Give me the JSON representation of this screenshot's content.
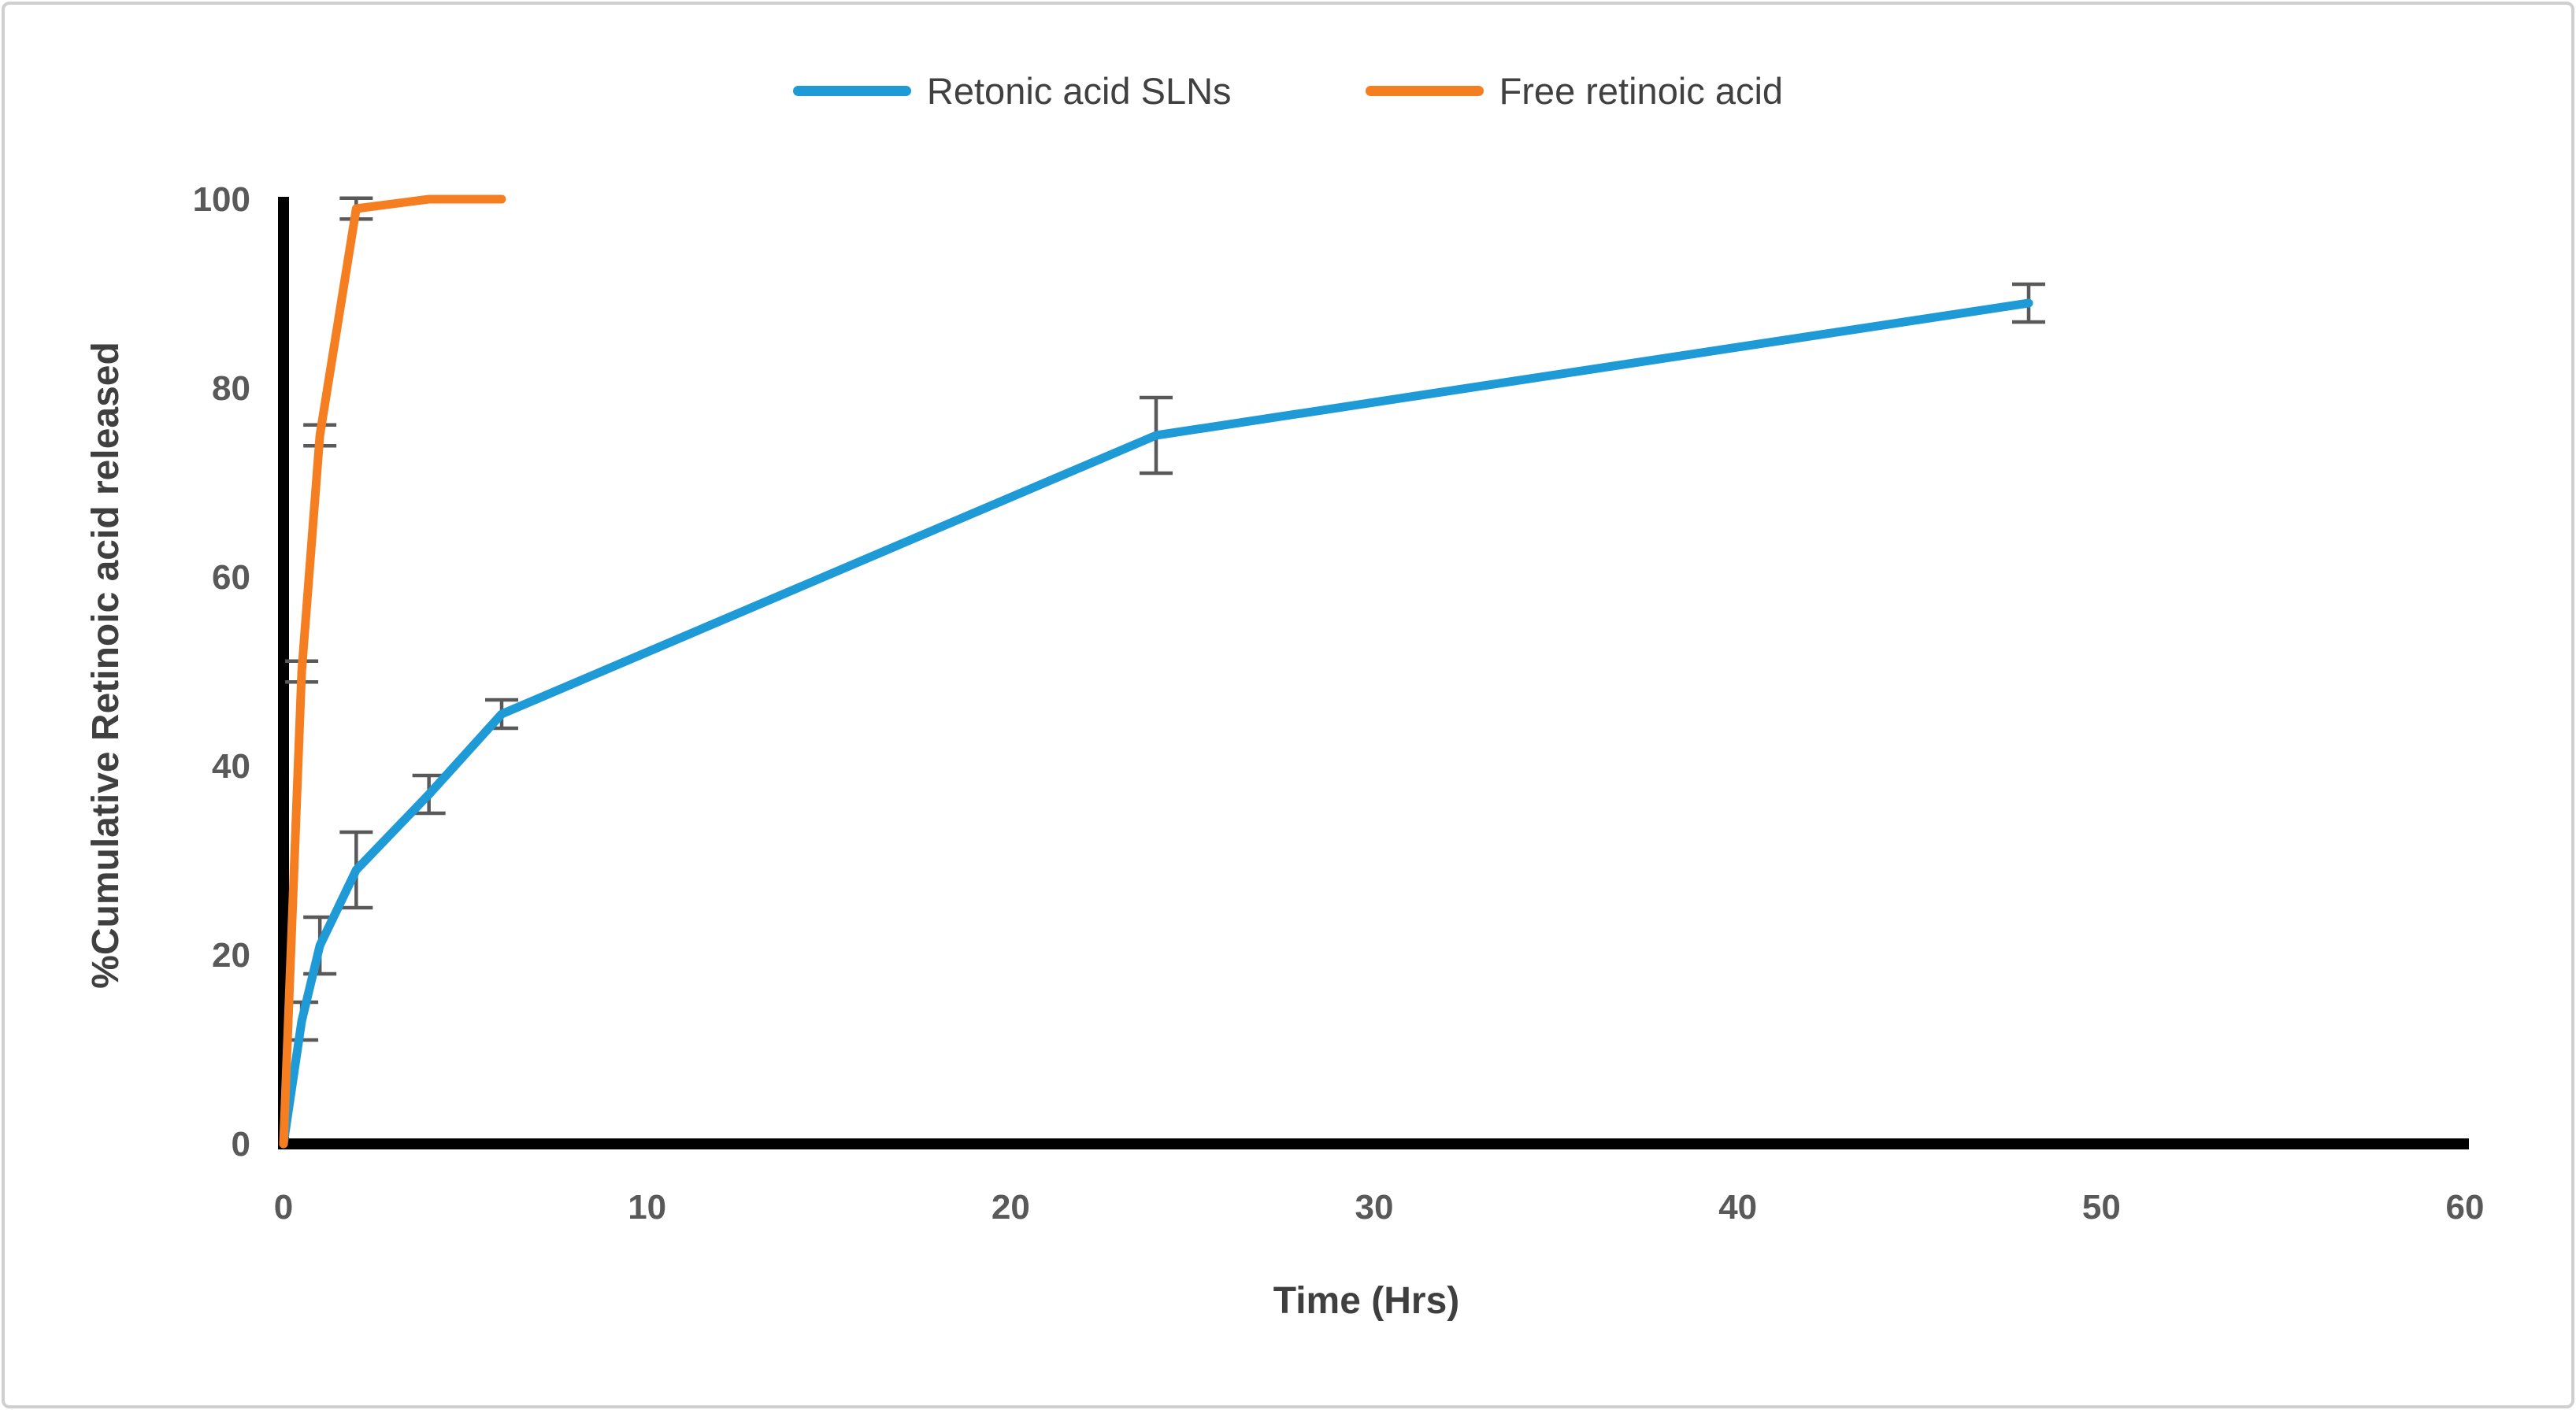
{
  "figure": {
    "border_color": "#cfcfcf",
    "background": "#ffffff"
  },
  "chart_data": {
    "type": "line",
    "title": "",
    "xlabel": "Time (Hrs)",
    "ylabel": "%Cumulative Retinoic acid released",
    "xlim": [
      0,
      60
    ],
    "ylim": [
      0,
      100
    ],
    "xticks": [
      0,
      10,
      20,
      30,
      40,
      50,
      60
    ],
    "yticks": [
      0,
      20,
      40,
      60,
      80,
      100
    ],
    "grid": false,
    "legend_position": "top-center",
    "axis_color": "#000000",
    "tick_label_color": "#595959",
    "error_bar_color": "#595959",
    "series": [
      {
        "name": "Retonic acid SLNs",
        "color": "#1E9BD7",
        "x": [
          0,
          0.5,
          1,
          2,
          4,
          6,
          24,
          48
        ],
        "y": [
          0,
          13,
          21,
          29,
          37,
          45.5,
          75,
          89
        ],
        "yerr": [
          0,
          2,
          3,
          4,
          2,
          1.5,
          4,
          2
        ]
      },
      {
        "name": "Free retinoic acid",
        "color": "#F57E20",
        "x": [
          0,
          0.5,
          1,
          2,
          4,
          6
        ],
        "y": [
          0,
          50,
          75,
          99,
          100,
          100
        ],
        "yerr": [
          0,
          1.1,
          1.1,
          1.1,
          0,
          0
        ]
      }
    ]
  }
}
